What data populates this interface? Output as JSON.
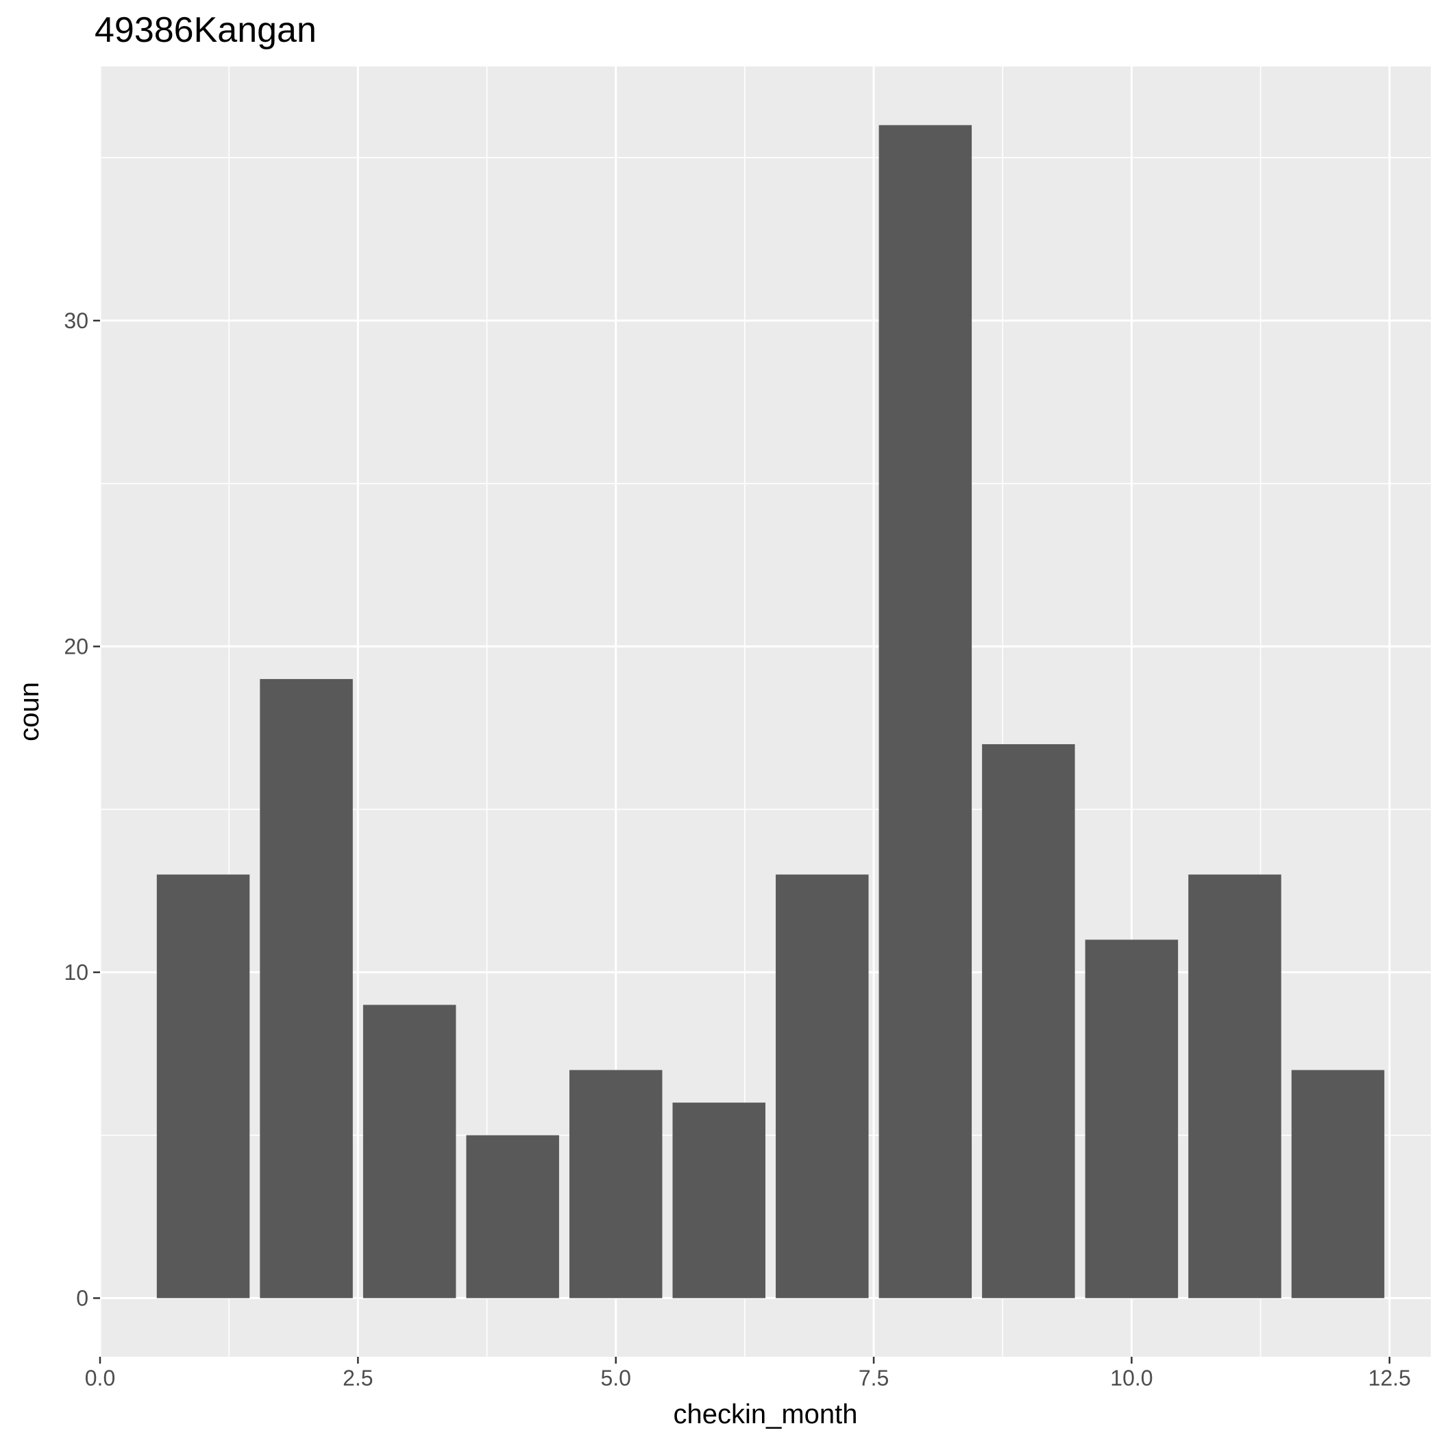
{
  "chart_data": {
    "type": "bar",
    "title": "49386Kangan",
    "xlabel": "checkin_month",
    "ylabel": "coun",
    "x": [
      1,
      2,
      3,
      4,
      5,
      6,
      7,
      8,
      9,
      10,
      11,
      12
    ],
    "values": [
      13,
      19,
      9,
      5,
      7,
      6,
      13,
      36,
      17,
      11,
      13,
      7
    ],
    "xlim": [
      0,
      12.9
    ],
    "ylim": [
      -1.8,
      37.8
    ],
    "x_ticks": [
      0,
      2.5,
      5,
      7.5,
      10,
      12.5
    ],
    "x_tick_labels": [
      "0.0",
      "2.5",
      "5.0",
      "7.5",
      "10.0",
      "12.5"
    ],
    "y_ticks": [
      0,
      10,
      20,
      30
    ],
    "y_tick_labels": [
      "0",
      "10",
      "20",
      "30"
    ],
    "grid": true,
    "legend": "none",
    "colors": {
      "bar": "#595959",
      "panel": "#ebebeb",
      "grid": "#ffffff",
      "tick_text": "#4d4d4d"
    }
  }
}
